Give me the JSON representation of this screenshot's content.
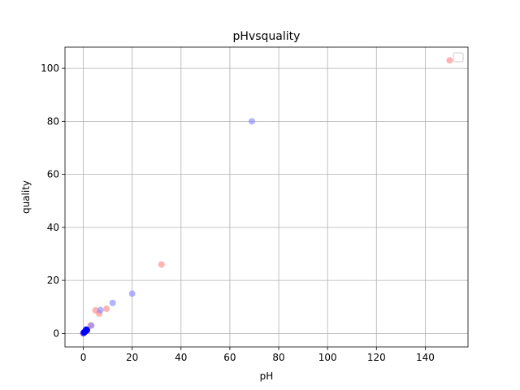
{
  "chart_data": {
    "type": "scatter",
    "title": "pHvsquality",
    "xlabel": "pH",
    "ylabel": "quality",
    "xlim": [
      -7.5,
      157.5
    ],
    "ylim": [
      -5.1,
      108.0
    ],
    "xticks": [
      0,
      20,
      40,
      60,
      80,
      100,
      120,
      140
    ],
    "yticks": [
      0,
      20,
      40,
      60,
      80,
      100
    ],
    "grid": true,
    "legend": {
      "placement": "top-right",
      "entries": []
    },
    "series": [
      {
        "color": "#ff8080",
        "alpha": 0.6,
        "points": [
          [
            150,
            103
          ],
          [
            32,
            26
          ],
          [
            5,
            8.7
          ],
          [
            6.5,
            7.5
          ],
          [
            9.5,
            9.3
          ],
          [
            3,
            3
          ],
          [
            0.5,
            0.5
          ],
          [
            1,
            1
          ],
          [
            0.2,
            0.2
          ],
          [
            0,
            0
          ]
        ]
      },
      {
        "color": "#8080ff",
        "alpha": 0.6,
        "points": [
          [
            69,
            80
          ],
          [
            20,
            15
          ],
          [
            12,
            11.5
          ],
          [
            7,
            8.8
          ],
          [
            3.3,
            3
          ],
          [
            1.2,
            1.5
          ],
          [
            1,
            1
          ],
          [
            0.6,
            0.6
          ],
          [
            0.3,
            0.3
          ],
          [
            0,
            0
          ]
        ]
      },
      {
        "color": "#0000ff",
        "alpha": 0.9,
        "points": [
          [
            0.5,
            0.5
          ],
          [
            1,
            1
          ],
          [
            1.5,
            1.2
          ],
          [
            0.8,
            0.8
          ],
          [
            0.2,
            0.3
          ],
          [
            1.2,
            1.4
          ]
        ]
      }
    ]
  }
}
